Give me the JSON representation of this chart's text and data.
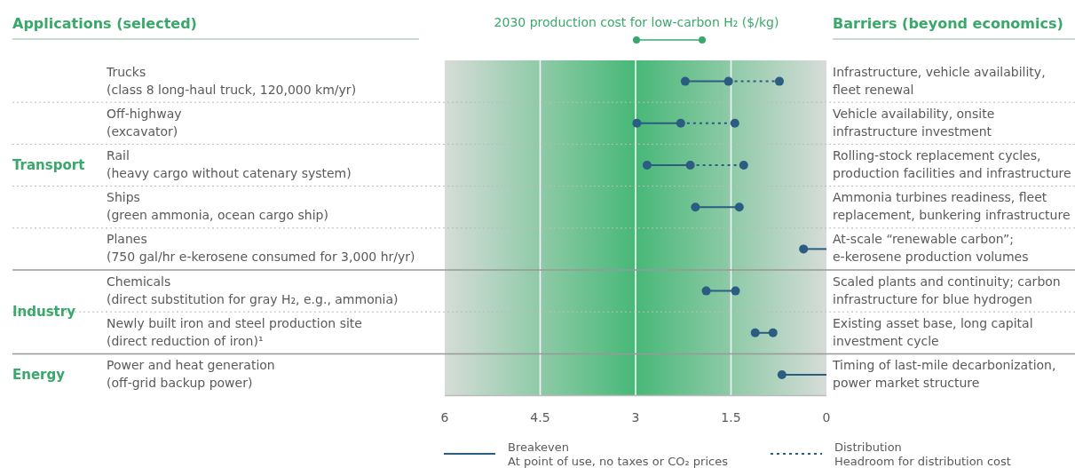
{
  "chart_data": {
    "orientation": "horizontal",
    "title": "2030 production cost for low-carbon H₂ ($/kg)",
    "categories": [
      "Trucks\n(class 8 long-haul truck, 120,000 km/yr)",
      "Off-highway\n(excavator)",
      "Rail\n(heavy cargo without catenary system)",
      "Ships\n(green ammonia, ocean cargo ship)",
      "Planes\n(750 gal/hr e-kerosene consumed for 3,000 hr/yr)",
      "Chemicals\n(direct substitution for gray H₂, e.g., ammonia)",
      "Newly built iron and steel production site\n(direct reduction of iron)¹",
      "Power and heat generation\n(off-grid backup power)"
    ],
    "y2_categories": [
      "Infrastructure, vehicle availability,\nfleet renewal",
      "Vehicle availability, onsite\ninfrastructure investment",
      "Rolling-stock replacement cycles,\nproduction facilities and infrastructure",
      "Ammonia turbines readiness, fleet\nreplacement, bunkering infrastructure",
      "At-scale “renewable carbon”;\ne-kerosene production volumes",
      "Scaled plants and continuity; carbon\ninfrastructure for blue hydrogen",
      "Existing asset base, long capital\ninvestment cycle",
      "Timing of last-mile decarbonization,\npower market structure"
    ],
    "series": [
      {
        "name": "Breakeven",
        "type": "scatter",
        "color": "#2b5c82",
        "line_style": "solid",
        "values": [
          2.22,
          2.98,
          2.82,
          2.06,
          0.36,
          1.89,
          1.12,
          0.7
        ]
      },
      {
        "type": "scatter",
        "color": "#2b5c82",
        "line_style": "solid",
        "values": [
          1.54,
          2.29,
          2.14,
          1.37,
          null,
          1.43,
          0.84,
          null
        ]
      },
      {
        "name": "Distribution",
        "type": "scatter",
        "color": "#2b5c82",
        "line_style": "dashed",
        "values": [
          0.74,
          1.44,
          1.3,
          null,
          null,
          null,
          null,
          null
        ]
      }
    ],
    "type": "scatter",
    "xlim": [
      6,
      0
    ],
    "xticks": [
      6,
      4.5,
      3,
      1.5,
      0
    ],
    "grid": "x",
    "marker": "circle",
    "legend": "bottom",
    "bands": [
      {
        "axis": "x",
        "from": 6,
        "to": 0,
        "color": "#47b877"
      }
    ],
    "annotations": [
      "Applications (selected)",
      "Barriers (beyond economics)",
      "Transport",
      "Industry",
      "Energy",
      "At point of use, no taxes or CO₂ prices",
      "Headroom for distribution cost"
    ]
  }
}
